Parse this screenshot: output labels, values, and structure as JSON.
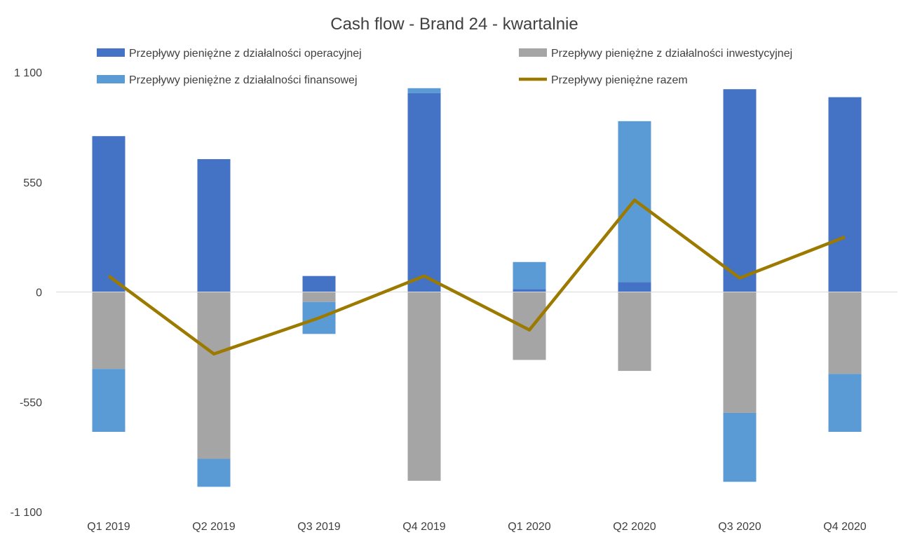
{
  "chart_data": {
    "type": "bar",
    "stacked": true,
    "title": "Cash flow - Brand 24 - kwartalnie",
    "xlabel": "",
    "ylabel": "",
    "categories": [
      "Q1 2019",
      "Q2 2019",
      "Q3 2019",
      "Q4 2019",
      "Q1 2020",
      "Q2 2020",
      "Q3 2020",
      "Q4 2020"
    ],
    "ylim": [
      -1100,
      1100
    ],
    "yticks": [
      1100,
      550,
      0,
      -550,
      -1100
    ],
    "ytick_labels": [
      "1 100",
      "550",
      "0",
      "-550",
      "-1 100"
    ],
    "grid": false,
    "legend_position": "top",
    "series": [
      {
        "name": "Przepływy pieniężne z działalności operacyjnej",
        "type": "bar",
        "color": "#4472C4",
        "values": [
          780,
          665,
          80,
          995,
          15,
          50,
          1015,
          975
        ]
      },
      {
        "name": "Przepływy pieniężne z działalności inwestycyjnej",
        "type": "bar",
        "color": "#A5A5A5",
        "values": [
          -385,
          -835,
          -50,
          -945,
          -340,
          -395,
          -605,
          -410
        ]
      },
      {
        "name": "Przepływy pieniężne z działalności finansowej",
        "type": "bar",
        "color": "#5B9BD5",
        "values": [
          -315,
          -140,
          -160,
          25,
          135,
          805,
          -345,
          -290
        ]
      },
      {
        "name": "Przepływy pieniężne razem",
        "type": "line",
        "color": "#9C7A00",
        "values": [
          80,
          -310,
          -130,
          80,
          -190,
          460,
          70,
          275
        ]
      }
    ]
  }
}
